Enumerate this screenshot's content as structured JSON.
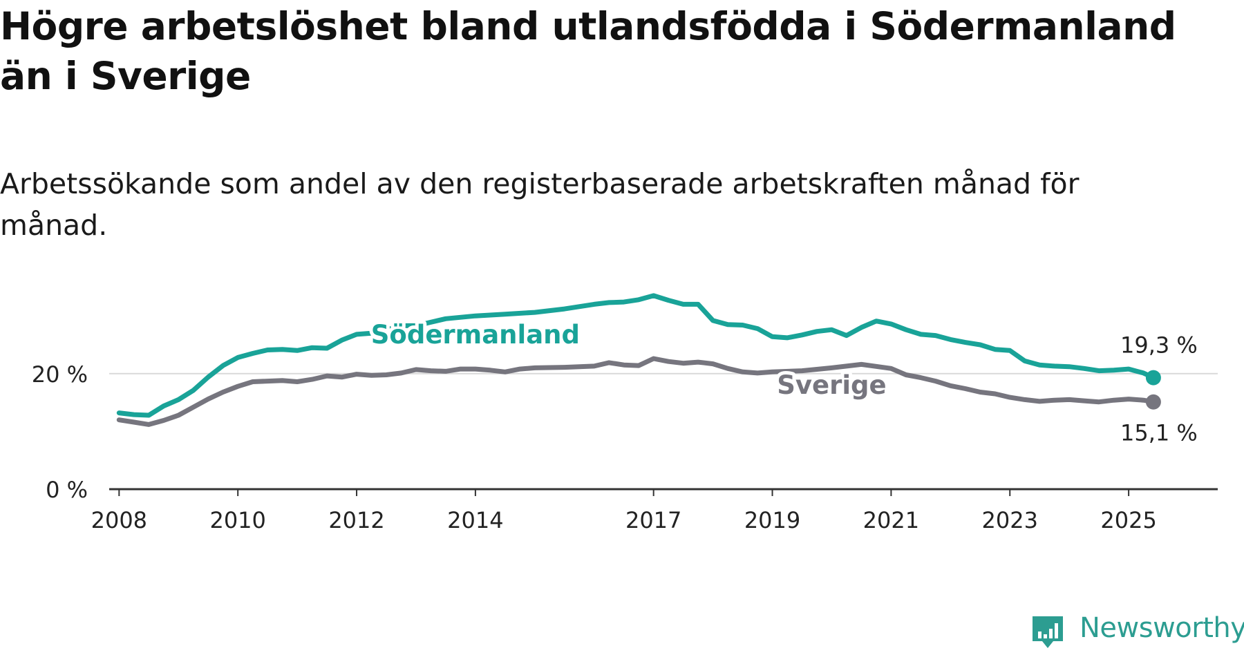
{
  "header": {
    "title": "Högre arbetslöshet bland utlandsfödda i Södermanland än i Sverige",
    "subtitle": "Arbetssökande som andel av den registerbaserade arbetskraften månad för månad."
  },
  "brand": {
    "name": "Newsworthy",
    "icon": "bar-chart-icon",
    "color": "#2c9d91"
  },
  "chart_data": {
    "type": "line",
    "title": "Högre arbetslöshet bland utlandsfödda i Södermanland än i Sverige",
    "subtitle": "Arbetssökande som andel av den registerbaserade arbetskraften månad för månad.",
    "xlabel": "",
    "ylabel": "",
    "ylim": [
      0,
      36
    ],
    "xlim": [
      "2007-11",
      "2026-07"
    ],
    "grid": true,
    "y_ticks": [
      {
        "value": 0,
        "label": "0 %"
      },
      {
        "value": 20,
        "label": "20 %"
      }
    ],
    "x_ticks": [
      {
        "value": "2008-01",
        "label": "2008"
      },
      {
        "value": "2010-01",
        "label": "2010"
      },
      {
        "value": "2012-01",
        "label": "2012"
      },
      {
        "value": "2014-01",
        "label": "2014"
      },
      {
        "value": "2017-01",
        "label": "2017"
      },
      {
        "value": "2019-01",
        "label": "2019"
      },
      {
        "value": "2021-01",
        "label": "2021"
      },
      {
        "value": "2023-01",
        "label": "2023"
      },
      {
        "value": "2025-01",
        "label": "2025"
      }
    ],
    "series": [
      {
        "name": "Södermanland",
        "color": "#19a398",
        "end_label": "19,3 %",
        "points": [
          [
            "2008-01",
            13.2
          ],
          [
            "2008-04",
            12.9
          ],
          [
            "2008-07",
            12.8
          ],
          [
            "2008-10",
            14.4
          ],
          [
            "2009-01",
            15.5
          ],
          [
            "2009-04",
            17.1
          ],
          [
            "2009-07",
            19.4
          ],
          [
            "2009-10",
            21.4
          ],
          [
            "2010-01",
            22.8
          ],
          [
            "2010-04",
            23.5
          ],
          [
            "2010-07",
            24.1
          ],
          [
            "2010-10",
            24.2
          ],
          [
            "2011-01",
            24.0
          ],
          [
            "2011-04",
            24.5
          ],
          [
            "2011-07",
            24.4
          ],
          [
            "2011-10",
            25.8
          ],
          [
            "2012-01",
            26.8
          ],
          [
            "2012-04",
            27.0
          ],
          [
            "2012-07",
            27.6
          ],
          [
            "2012-10",
            28.3
          ],
          [
            "2013-01",
            28.3
          ],
          [
            "2013-07",
            29.5
          ],
          [
            "2014-01",
            30.0
          ],
          [
            "2014-07",
            30.3
          ],
          [
            "2015-01",
            30.6
          ],
          [
            "2015-07",
            31.2
          ],
          [
            "2016-01",
            32.0
          ],
          [
            "2016-04",
            32.3
          ],
          [
            "2016-07",
            32.4
          ],
          [
            "2016-10",
            32.8
          ],
          [
            "2017-01",
            33.5
          ],
          [
            "2017-04",
            32.7
          ],
          [
            "2017-07",
            32.0
          ],
          [
            "2017-10",
            32.0
          ],
          [
            "2018-01",
            29.2
          ],
          [
            "2018-04",
            28.5
          ],
          [
            "2018-07",
            28.4
          ],
          [
            "2018-10",
            27.8
          ],
          [
            "2019-01",
            26.4
          ],
          [
            "2019-04",
            26.2
          ],
          [
            "2019-07",
            26.7
          ],
          [
            "2019-10",
            27.3
          ],
          [
            "2020-01",
            27.6
          ],
          [
            "2020-04",
            26.6
          ],
          [
            "2020-07",
            28.0
          ],
          [
            "2020-10",
            29.1
          ],
          [
            "2021-01",
            28.6
          ],
          [
            "2021-04",
            27.6
          ],
          [
            "2021-07",
            26.8
          ],
          [
            "2021-10",
            26.6
          ],
          [
            "2022-01",
            25.9
          ],
          [
            "2022-04",
            25.4
          ],
          [
            "2022-07",
            25.0
          ],
          [
            "2022-10",
            24.2
          ],
          [
            "2023-01",
            24.0
          ],
          [
            "2023-04",
            22.2
          ],
          [
            "2023-07",
            21.5
          ],
          [
            "2023-10",
            21.3
          ],
          [
            "2024-01",
            21.2
          ],
          [
            "2024-04",
            20.9
          ],
          [
            "2024-07",
            20.5
          ],
          [
            "2024-10",
            20.6
          ],
          [
            "2025-01",
            20.8
          ],
          [
            "2025-04",
            20.1
          ],
          [
            "2025-06",
            19.3
          ]
        ]
      },
      {
        "name": "Sverige",
        "color": "#76757e",
        "end_label": "15,1 %",
        "points": [
          [
            "2008-01",
            12.0
          ],
          [
            "2008-04",
            11.6
          ],
          [
            "2008-07",
            11.2
          ],
          [
            "2008-10",
            11.9
          ],
          [
            "2009-01",
            12.8
          ],
          [
            "2009-04",
            14.2
          ],
          [
            "2009-07",
            15.6
          ],
          [
            "2009-10",
            16.8
          ],
          [
            "2010-01",
            17.8
          ],
          [
            "2010-04",
            18.6
          ],
          [
            "2010-07",
            18.7
          ],
          [
            "2010-10",
            18.8
          ],
          [
            "2011-01",
            18.6
          ],
          [
            "2011-04",
            19.0
          ],
          [
            "2011-07",
            19.6
          ],
          [
            "2011-10",
            19.4
          ],
          [
            "2012-01",
            19.9
          ],
          [
            "2012-04",
            19.7
          ],
          [
            "2012-07",
            19.8
          ],
          [
            "2012-10",
            20.1
          ],
          [
            "2013-01",
            20.7
          ],
          [
            "2013-04",
            20.5
          ],
          [
            "2013-07",
            20.4
          ],
          [
            "2013-10",
            20.8
          ],
          [
            "2014-01",
            20.8
          ],
          [
            "2014-04",
            20.6
          ],
          [
            "2014-07",
            20.3
          ],
          [
            "2014-10",
            20.8
          ],
          [
            "2015-01",
            21.0
          ],
          [
            "2015-07",
            21.1
          ],
          [
            "2016-01",
            21.3
          ],
          [
            "2016-04",
            21.9
          ],
          [
            "2016-07",
            21.5
          ],
          [
            "2016-10",
            21.4
          ],
          [
            "2017-01",
            22.6
          ],
          [
            "2017-04",
            22.1
          ],
          [
            "2017-07",
            21.8
          ],
          [
            "2017-10",
            22.0
          ],
          [
            "2018-01",
            21.7
          ],
          [
            "2018-04",
            20.9
          ],
          [
            "2018-07",
            20.3
          ],
          [
            "2018-10",
            20.1
          ],
          [
            "2019-01",
            20.3
          ],
          [
            "2019-07",
            20.5
          ],
          [
            "2020-01",
            21.0
          ],
          [
            "2020-07",
            21.6
          ],
          [
            "2021-01",
            20.9
          ],
          [
            "2021-04",
            19.8
          ],
          [
            "2021-07",
            19.3
          ],
          [
            "2021-10",
            18.7
          ],
          [
            "2022-01",
            17.9
          ],
          [
            "2022-04",
            17.4
          ],
          [
            "2022-07",
            16.8
          ],
          [
            "2022-10",
            16.5
          ],
          [
            "2023-01",
            15.9
          ],
          [
            "2023-04",
            15.5
          ],
          [
            "2023-07",
            15.2
          ],
          [
            "2023-10",
            15.4
          ],
          [
            "2024-01",
            15.5
          ],
          [
            "2024-04",
            15.3
          ],
          [
            "2024-07",
            15.1
          ],
          [
            "2024-10",
            15.4
          ],
          [
            "2025-01",
            15.6
          ],
          [
            "2025-04",
            15.4
          ],
          [
            "2025-06",
            15.1
          ]
        ]
      }
    ]
  }
}
